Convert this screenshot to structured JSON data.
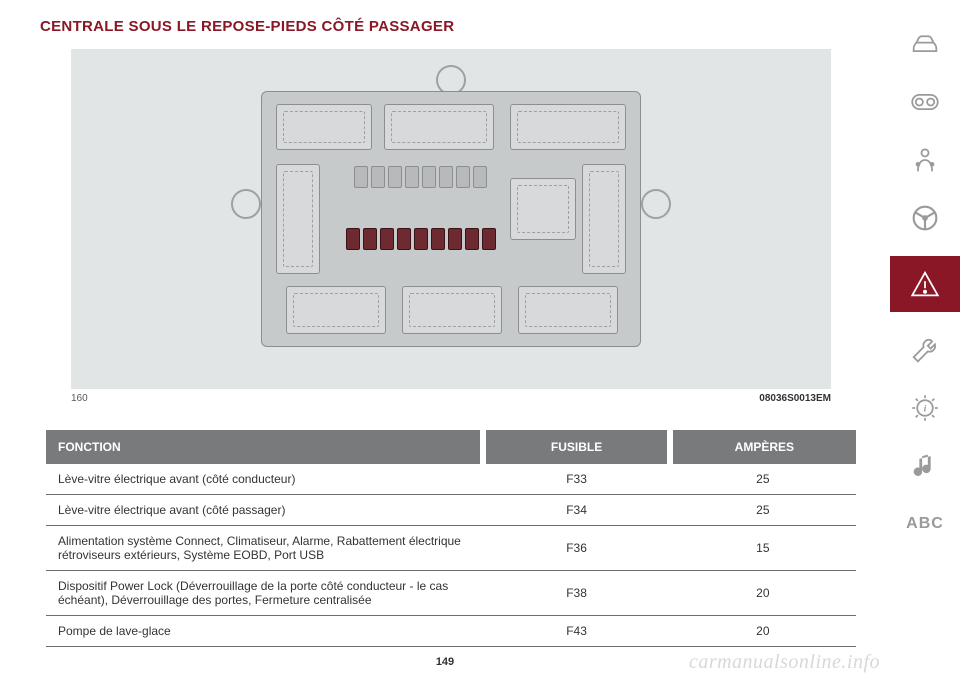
{
  "title": "CENTRALE SOUS LE REPOSE-PIEDS CÔTÉ PASSAGER",
  "figure": {
    "num": "160",
    "code": "08036S0013EM",
    "background_color": "#e2e5e6"
  },
  "columns": {
    "fonction": "FONCTION",
    "fusible": "FUSIBLE",
    "amperes": "AMPÈRES"
  },
  "rows": [
    {
      "fonction": "Lève-vitre électrique avant (côté conducteur)",
      "fusible": "F33",
      "amperes": "25"
    },
    {
      "fonction": "Lève-vitre électrique avant (côté passager)",
      "fusible": "F34",
      "amperes": "25"
    },
    {
      "fonction": "Alimentation système Connect, Climatiseur, Alarme, Rabattement électrique rétroviseurs extérieurs, Système EOBD, Port USB",
      "fusible": "F36",
      "amperes": "15"
    },
    {
      "fonction": "Dispositif Power Lock (Déverrouillage de la porte côté conducteur - le cas échéant), Déverrouillage des portes, Fermeture centralisée",
      "fusible": "F38",
      "amperes": "20"
    },
    {
      "fonction": "Pompe de lave-glace",
      "fusible": "F43",
      "amperes": "20"
    }
  ],
  "page_number": "149",
  "watermark": "carmanualsonline.info",
  "sidebar": {
    "abc_label": "ABC",
    "accent_color": "#8a1726",
    "icon_color": "#9a9a9a"
  },
  "styling": {
    "title_color": "#8a1726",
    "title_fontsize": 15,
    "header_bg": "#787a7b",
    "header_fg": "#ffffff",
    "row_border": "#6e6e6e",
    "body_fontsize": 12
  }
}
